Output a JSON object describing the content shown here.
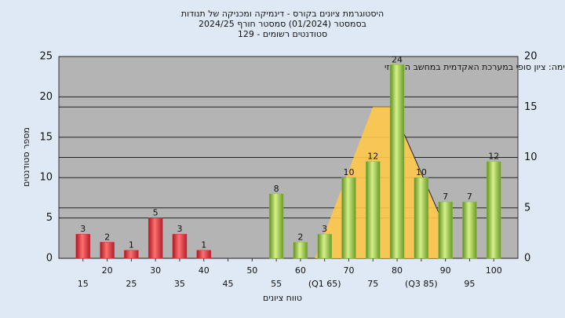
{
  "chart_data": {
    "type": "bar",
    "title": "היסטוגרמת ציונים בקורס - דינמיקה ומכניקה של תנודות",
    "subtitle": "בסמסטר  (01/2024)  סמסטר חורף 2024/25",
    "subtitle2": "סטודנטים רשומים - 129",
    "annotation": "במשימה: ציון סופי במערכת האקדמית במחשב המרכזי",
    "x_label": "טווח ציונים",
    "y_label": "מספר סטודנטים",
    "x": [
      15,
      20,
      25,
      30,
      35,
      40,
      45,
      50,
      55,
      60,
      65,
      70,
      75,
      80,
      85,
      90,
      95,
      100
    ],
    "values": [
      3,
      2,
      1,
      5,
      3,
      1,
      null,
      null,
      8,
      2,
      3,
      10,
      12,
      24,
      10,
      7,
      7,
      12
    ],
    "bar_colors": [
      "#e0303a",
      "#e0303a",
      "#e0303a",
      "#e0303a",
      "#e0303a",
      "#e0303a",
      "#e0303a",
      "#e0303a",
      "#8fc043",
      "#8fc043",
      "#8fc043",
      "#8fc043",
      "#8fc043",
      "#8fc043",
      "#8fc043",
      "#8fc043",
      "#8fc043",
      "#8fc043"
    ],
    "xlim": [
      10,
      105
    ],
    "xticks": [
      15,
      20,
      25,
      30,
      35,
      40,
      45,
      50,
      55,
      60,
      {
        "value": 65,
        "label": "(Q1 65)"
      },
      70,
      75,
      80,
      {
        "value": 85,
        "label": "(Q3 85)"
      },
      90,
      95,
      100
    ],
    "ylim": [
      0,
      25
    ],
    "yticks": [
      0,
      5,
      10,
      15,
      20,
      25
    ],
    "y2lim": [
      0,
      20
    ],
    "y2ticks": [
      0,
      5,
      10,
      15,
      20
    ],
    "curve": {
      "axis": "y2",
      "color": "#ffc84a",
      "x": [
        63,
        75,
        79,
        90
      ],
      "values": [
        0,
        15,
        15,
        3
      ]
    },
    "grid": true
  }
}
